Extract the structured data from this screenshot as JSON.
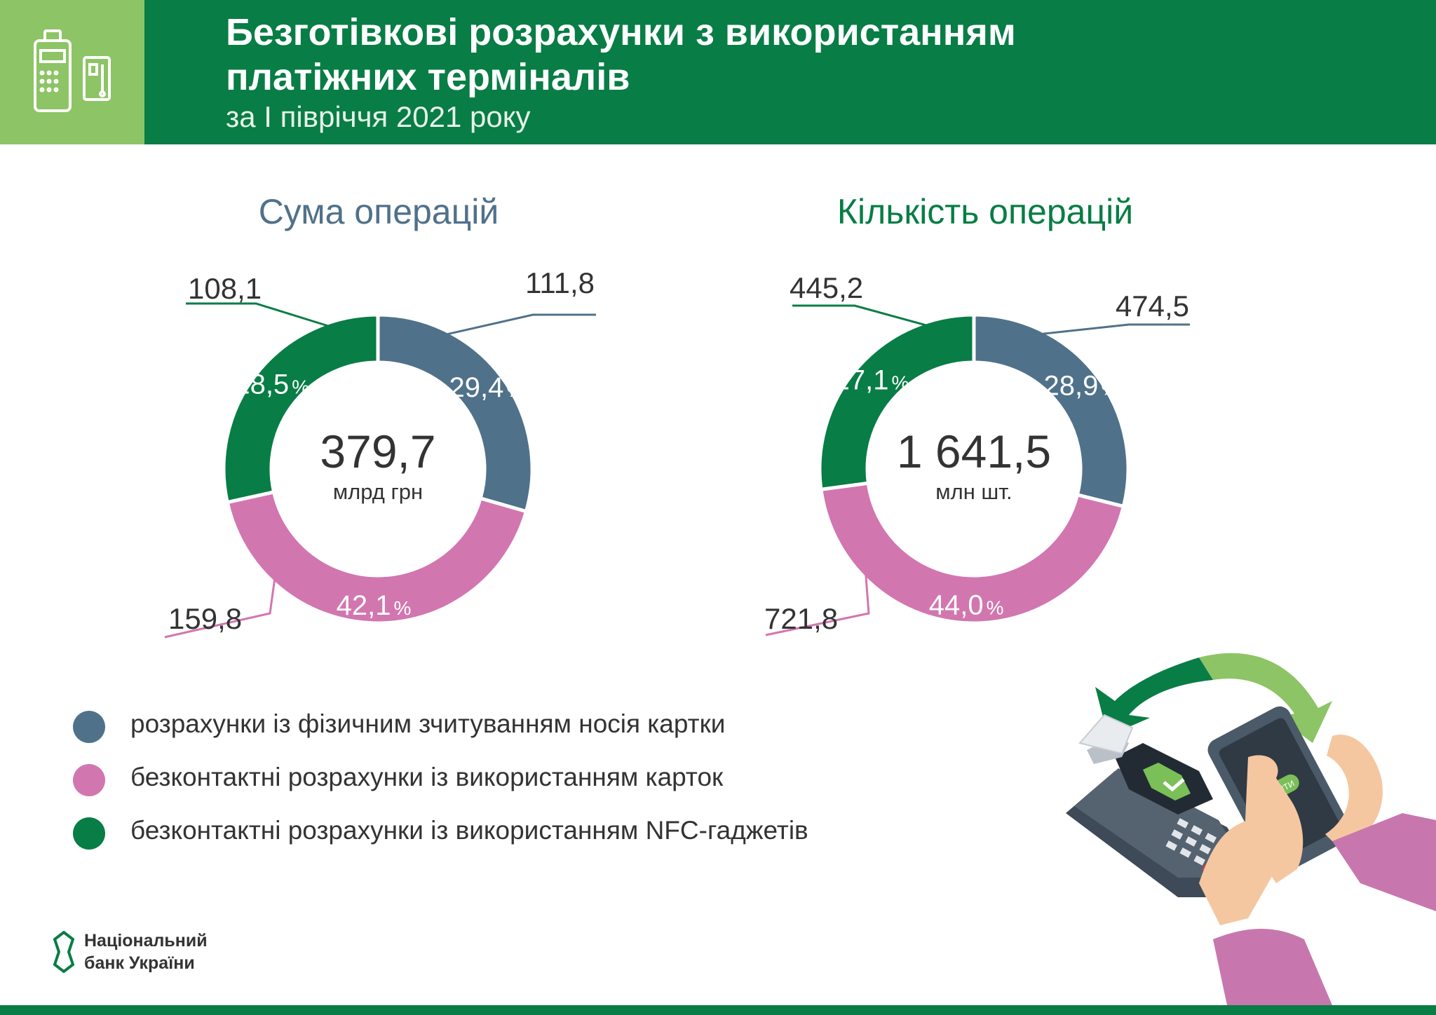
{
  "header": {
    "title_line1": "Безготівкові розрахунки з використанням",
    "title_line2": "платіжних терміналів",
    "subtitle": "за I півріччя 2021 року",
    "icon": "payment-terminal-and-card-icon"
  },
  "colors": {
    "header_green": "#087d45",
    "header_light_green": "#8dc465",
    "card_reading": "#50718a",
    "contactless_card": "#d276b0",
    "nfc_gadgets": "#087d45",
    "title_blue": "#50718a",
    "title_green": "#087d45"
  },
  "chart_data": [
    {
      "type": "pie",
      "title": "Сума операцій",
      "total": "379,7",
      "unit": "млрд грн",
      "categories": [
        "розрахунки із фізичним зчитуванням носія картки",
        "безконтактні розрахунки із використанням карток",
        "безконтактні розрахунки із використанням NFC-гаджетів"
      ],
      "values": [
        111.8,
        159.8,
        108.1
      ],
      "value_labels": [
        "111,8",
        "159,8",
        "108,1"
      ],
      "percent_labels": [
        "29,4",
        "42,1",
        "28,5"
      ]
    },
    {
      "type": "pie",
      "title": "Кількість операцій",
      "total": "1 641,5",
      "unit": "млн шт.",
      "categories": [
        "розрахунки із фізичним зчитуванням носія картки",
        "безконтактні розрахунки із використанням карток",
        "безконтактні розрахунки із використанням NFC-гаджетів"
      ],
      "values": [
        474.5,
        721.8,
        445.2
      ],
      "value_labels": [
        "474,5",
        "721,8",
        "445,2"
      ],
      "percent_labels": [
        "28,9",
        "44,0",
        "27,1"
      ]
    }
  ],
  "percent_sign": "%",
  "legend": [
    {
      "label": "розрахунки із фізичним зчитуванням носія картки"
    },
    {
      "label": "безконтактні розрахунки із використанням карток"
    },
    {
      "label": "безконтактні розрахунки із використанням NFC-гаджетів"
    }
  ],
  "footer": {
    "logo_line1": "Національний",
    "logo_line2": "банк України"
  },
  "illustration": {
    "pay_button": "СПЛАТИТИ"
  }
}
